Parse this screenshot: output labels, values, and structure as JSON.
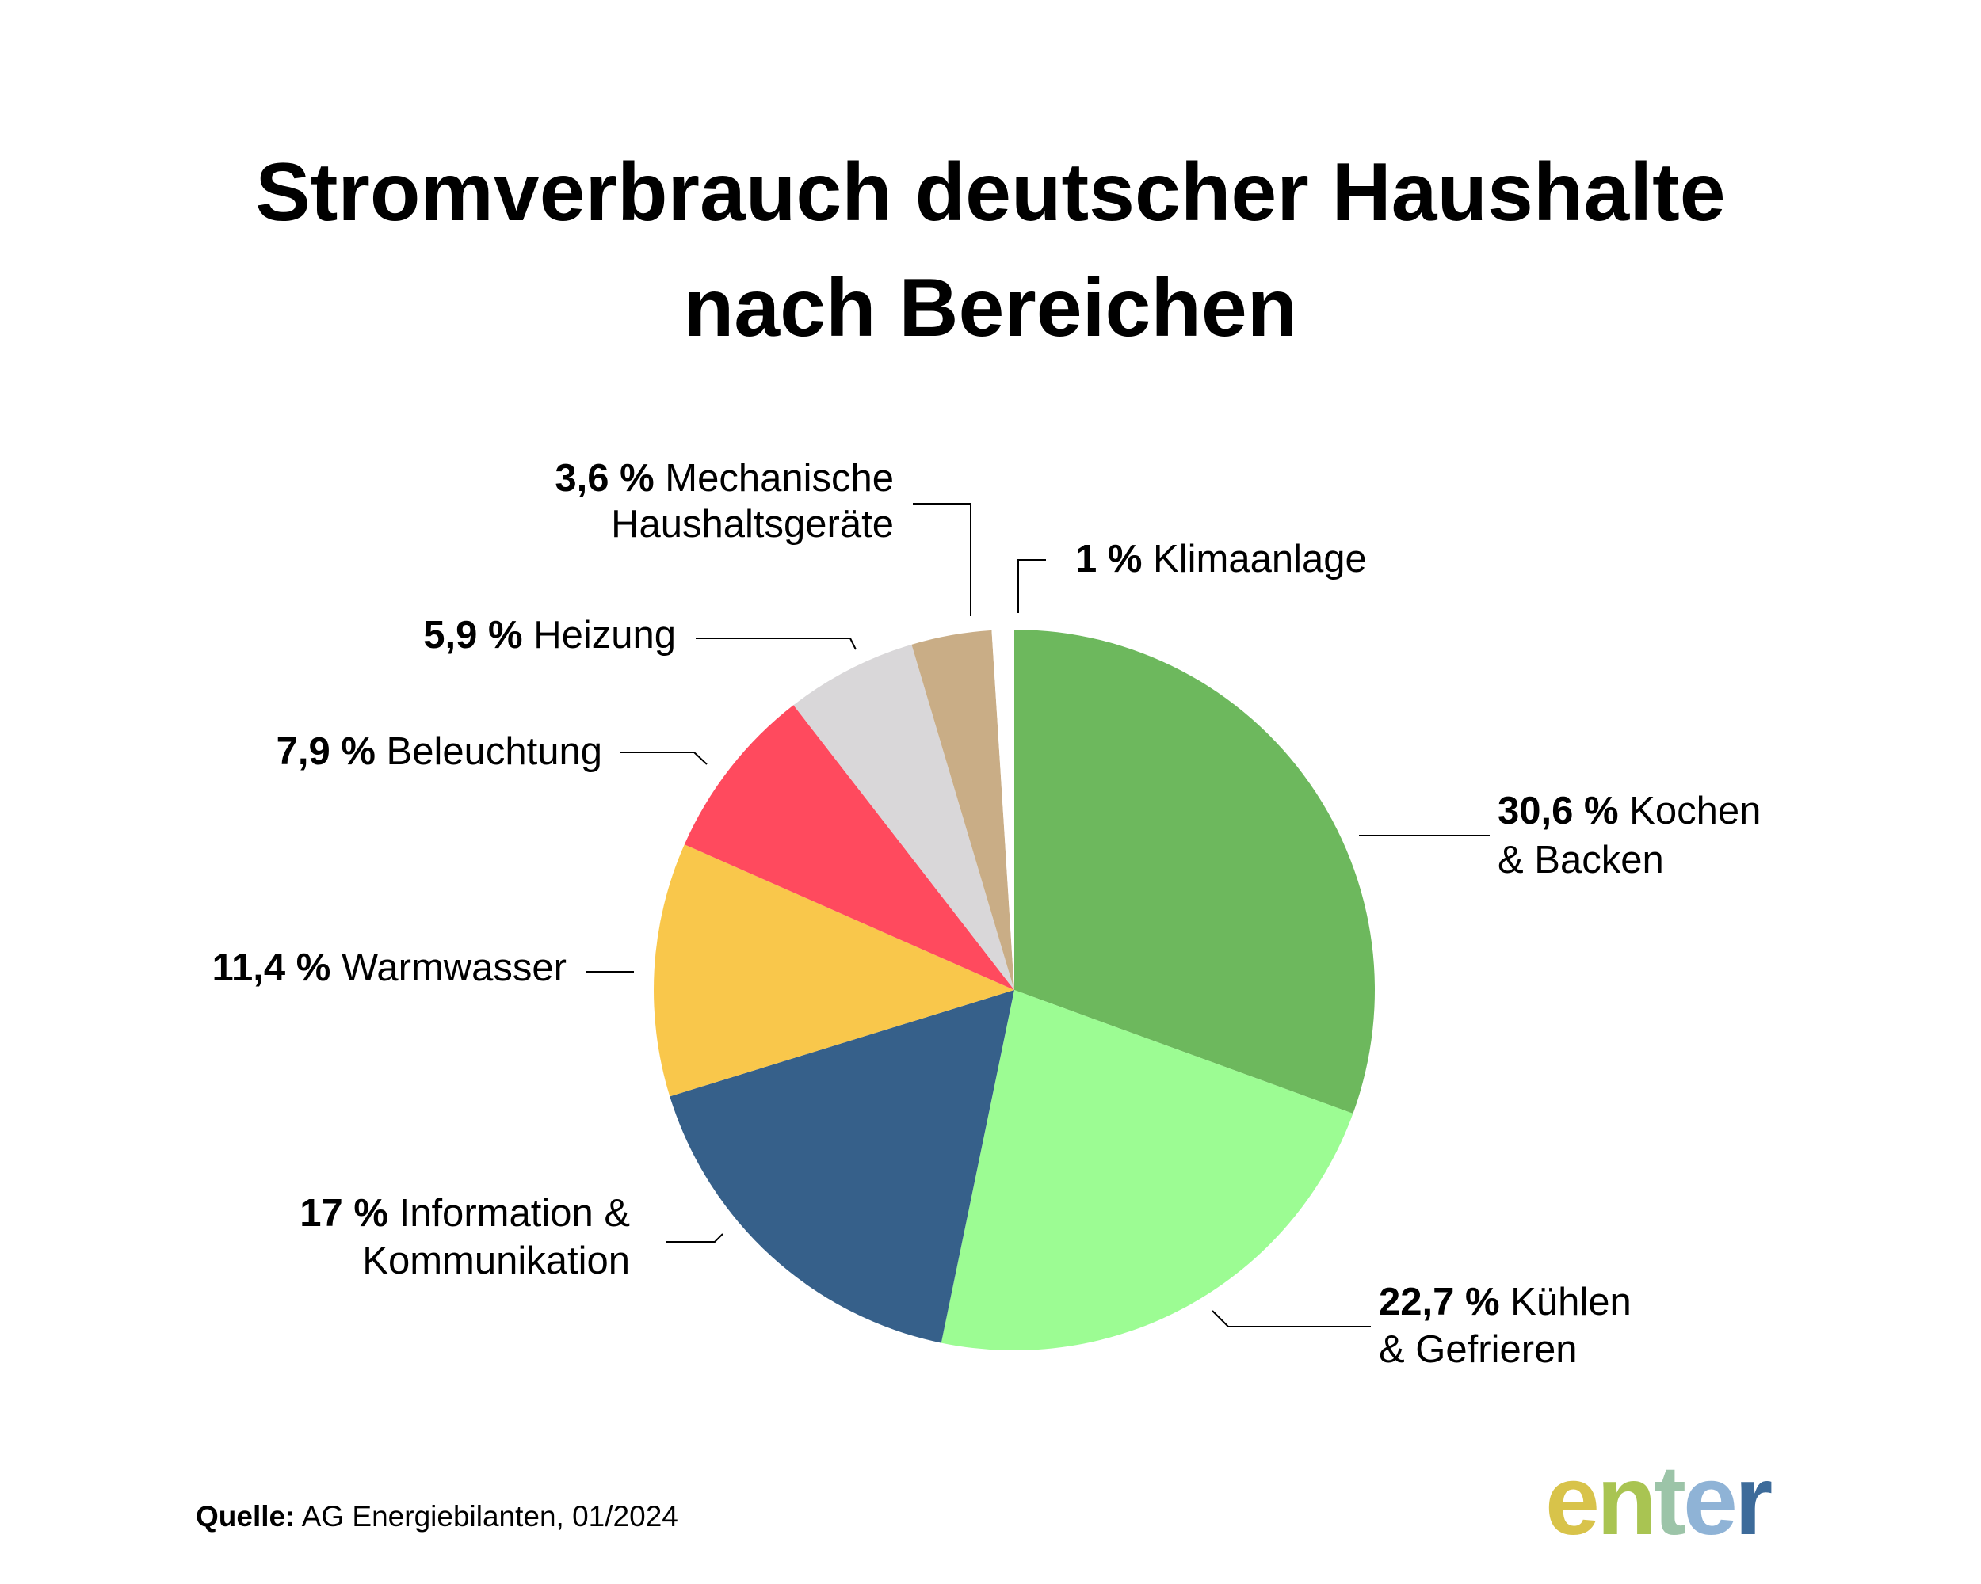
{
  "title_lines": [
    "Stromverbrauch deutscher Haushalte",
    "nach Bereichen"
  ],
  "source": {
    "label": "Quelle:",
    "text": "AG Energiebilanten, 01/2024"
  },
  "logo": {
    "letters": [
      "e",
      "n",
      "t",
      "e",
      "r"
    ]
  },
  "chart_data": {
    "type": "pie",
    "title": "Stromverbrauch deutscher Haushalte nach Bereichen",
    "unit": "%",
    "start": "12 o'clock, clockwise",
    "slices": [
      {
        "value": 30.6,
        "value_label": "30,6 %",
        "label_lines": [
          "Kochen",
          "& Backen"
        ],
        "color": "#6db85d"
      },
      {
        "value": 22.7,
        "value_label": "22,7 %",
        "label_lines": [
          "Kühlen",
          "& Gefrieren"
        ],
        "color": "#9cfc93"
      },
      {
        "value": 17.0,
        "value_label": "17 %",
        "label_lines": [
          "Information &",
          "Kommunikation"
        ],
        "color": "#36608a"
      },
      {
        "value": 11.4,
        "value_label": "11,4 %",
        "label_lines": [
          "Warmwasser"
        ],
        "color": "#f9c74b"
      },
      {
        "value": 7.9,
        "value_label": "7,9 %",
        "label_lines": [
          "Beleuchtung"
        ],
        "color": "#ff4a5e"
      },
      {
        "value": 5.9,
        "value_label": "5,9 %",
        "label_lines": [
          "Heizung"
        ],
        "color": "#d9d7d9"
      },
      {
        "value": 3.6,
        "value_label": "3,6 %",
        "label_lines": [
          "Mechanische",
          "Haushaltsgeräte"
        ],
        "color": "#c9ad86"
      },
      {
        "value": 1.0,
        "value_label": "1 %",
        "label_lines": [
          "Klimaanlage"
        ],
        "color": "#ffffff"
      }
    ]
  }
}
